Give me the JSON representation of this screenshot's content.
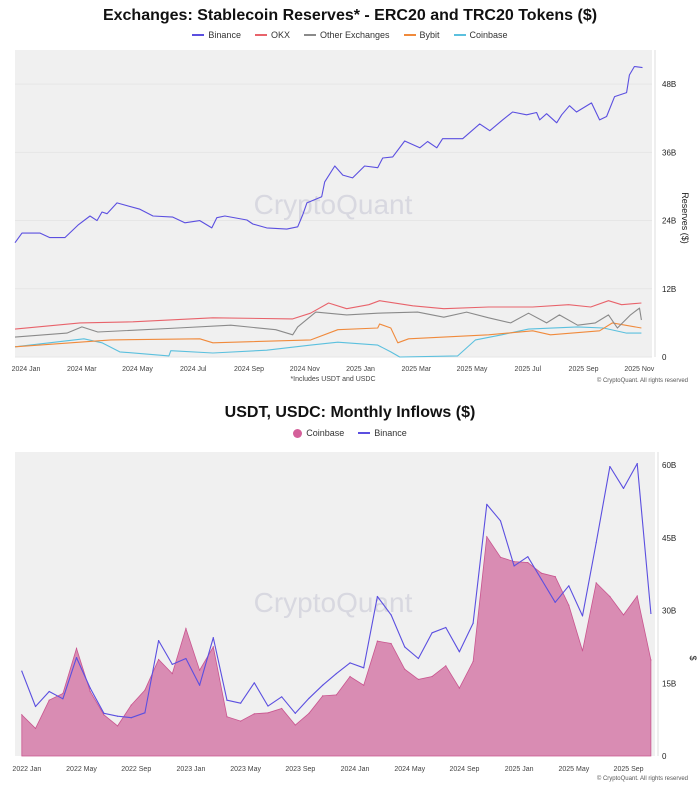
{
  "watermark": "CryptoQuant",
  "chart_data": [
    {
      "type": "line",
      "title": "Exchanges: Stablecoin Reserves* - ERC20 and TRC20 Tokens ($)",
      "ylabel": "Reserves ($)",
      "x_unit": "months since 2024 Jan",
      "ylim": [
        0,
        54
      ],
      "yticks": [
        0,
        12,
        24,
        36,
        48
      ],
      "ytick_labels": [
        "0",
        "12B",
        "24B",
        "36B",
        "48B"
      ],
      "xticks": [
        0,
        2,
        4,
        6,
        8,
        10,
        12,
        14,
        16,
        18,
        20,
        22
      ],
      "xtick_labels": [
        "2024 Jan",
        "2024 Mar",
        "2024 May",
        "2024 Jul",
        "2024 Sep",
        "2024 Nov",
        "2025 Jan",
        "2025 Mar",
        "2025 May",
        "2025 Jul",
        "2025 Sep",
        "2025 Nov"
      ],
      "xlim": [
        0,
        22.85
      ],
      "footnote": "*Includes USDT and USDC",
      "copyright": "© CryptoQuant. All rights reserved",
      "grid": true,
      "legend_position": "top-center",
      "series": [
        {
          "name": "Binance",
          "color": "#5b4fe0",
          "points": [
            [
              0,
              20.1
            ],
            [
              0.25,
              21.8
            ],
            [
              0.9,
              21.8
            ],
            [
              1.25,
              21
            ],
            [
              1.79,
              21
            ],
            [
              2.26,
              23.2
            ],
            [
              2.69,
              24.8
            ],
            [
              2.94,
              24
            ],
            [
              3.12,
              25.5
            ],
            [
              3.3,
              25.2
            ],
            [
              3.66,
              27.1
            ],
            [
              4.48,
              26
            ],
            [
              4.95,
              24.8
            ],
            [
              5.66,
              24.6
            ],
            [
              6.09,
              23.6
            ],
            [
              6.63,
              24
            ],
            [
              7.06,
              22.7
            ],
            [
              7.24,
              24.5
            ],
            [
              7.53,
              24.8
            ],
            [
              8.32,
              24.1
            ],
            [
              8.53,
              23.4
            ],
            [
              9.03,
              22.7
            ],
            [
              9.75,
              22.5
            ],
            [
              10.14,
              22.9
            ],
            [
              10.32,
              25
            ],
            [
              10.47,
              27.1
            ],
            [
              11.0,
              28.2
            ],
            [
              11.11,
              30.8
            ],
            [
              11.47,
              33.6
            ],
            [
              11.76,
              32
            ],
            [
              12.11,
              31.5
            ],
            [
              12.54,
              33.6
            ],
            [
              13.01,
              33.3
            ],
            [
              13.19,
              35
            ],
            [
              13.55,
              35.2
            ],
            [
              13.98,
              38
            ],
            [
              14.52,
              36.8
            ],
            [
              14.8,
              37.9
            ],
            [
              15.13,
              36.8
            ],
            [
              15.34,
              38.4
            ],
            [
              16.06,
              38.4
            ],
            [
              16.67,
              41
            ],
            [
              17.03,
              39.8
            ],
            [
              17.49,
              41.7
            ],
            [
              17.85,
              43.1
            ],
            [
              18.35,
              42.6
            ],
            [
              18.71,
              43
            ],
            [
              18.82,
              41.7
            ],
            [
              19.07,
              42.8
            ],
            [
              19.43,
              41.2
            ],
            [
              19.61,
              42.6
            ],
            [
              19.89,
              44.2
            ],
            [
              20.14,
              43.1
            ],
            [
              20.68,
              44.7
            ],
            [
              20.97,
              41.7
            ],
            [
              21.22,
              42.3
            ],
            [
              21.51,
              45.8
            ],
            [
              21.94,
              46.5
            ],
            [
              22.04,
              49.6
            ],
            [
              22.22,
              51.1
            ],
            [
              22.51,
              50.9
            ]
          ]
        },
        {
          "name": "OKX",
          "color": "#e8636b",
          "points": [
            [
              0,
              4.9
            ],
            [
              2.33,
              6
            ],
            [
              4.23,
              6.2
            ],
            [
              7.1,
              6.9
            ],
            [
              9.96,
              6.7
            ],
            [
              10.6,
              7.7
            ],
            [
              11.25,
              9.5
            ],
            [
              11.9,
              8.5
            ],
            [
              12.69,
              9.2
            ],
            [
              13.08,
              9.9
            ],
            [
              14.27,
              9
            ],
            [
              15.38,
              8.5
            ],
            [
              16.99,
              8.8
            ],
            [
              18.57,
              8.8
            ],
            [
              19.86,
              9.2
            ],
            [
              20.65,
              8.8
            ],
            [
              21.29,
              9.9
            ],
            [
              21.76,
              9.2
            ],
            [
              22.47,
              9.5
            ]
          ]
        },
        {
          "name": "Other Exchanges",
          "color": "#8a8a8a",
          "points": [
            [
              0,
              3.5
            ],
            [
              1.86,
              4.2
            ],
            [
              2.4,
              5.3
            ],
            [
              2.97,
              4.4
            ],
            [
              5.84,
              5.1
            ],
            [
              7.74,
              5.6
            ],
            [
              9.35,
              4.8
            ],
            [
              9.96,
              3.9
            ],
            [
              10.14,
              5.3
            ],
            [
              10.79,
              7.9
            ],
            [
              11.9,
              7.4
            ],
            [
              13.01,
              7.7
            ],
            [
              14.44,
              7.9
            ],
            [
              15.38,
              7
            ],
            [
              16.2,
              7.9
            ],
            [
              16.99,
              6.9
            ],
            [
              17.78,
              6
            ],
            [
              18.42,
              7.7
            ],
            [
              19.07,
              6
            ],
            [
              19.53,
              7.4
            ],
            [
              20.18,
              5.6
            ],
            [
              20.82,
              6
            ],
            [
              21.29,
              7.4
            ],
            [
              21.61,
              5.1
            ],
            [
              22.08,
              7.4
            ],
            [
              22.4,
              8.6
            ],
            [
              22.47,
              6.5
            ]
          ]
        },
        {
          "name": "Bybit",
          "color": "#f08a3c",
          "points": [
            [
              0,
              1.8
            ],
            [
              3.44,
              3
            ],
            [
              6.63,
              3.2
            ],
            [
              7.1,
              2.5
            ],
            [
              10.61,
              3
            ],
            [
              11.58,
              4.8
            ],
            [
              13.01,
              5.1
            ],
            [
              13.08,
              5.8
            ],
            [
              13.48,
              5.1
            ],
            [
              13.73,
              2.5
            ],
            [
              14.12,
              3.2
            ],
            [
              16.99,
              3.9
            ],
            [
              18.57,
              4.6
            ],
            [
              19.21,
              3.9
            ],
            [
              20.97,
              4.6
            ],
            [
              21.43,
              6
            ],
            [
              22.47,
              5.1
            ]
          ]
        },
        {
          "name": "Coinbase",
          "color": "#5bc0de",
          "points": [
            [
              0,
              1.8
            ],
            [
              2.47,
              3.2
            ],
            [
              3.12,
              2.5
            ],
            [
              3.76,
              0.9
            ],
            [
              5.52,
              0.2
            ],
            [
              5.59,
              1.1
            ],
            [
              7.1,
              0.7
            ],
            [
              9.03,
              1.2
            ],
            [
              10.61,
              2.1
            ],
            [
              11.58,
              2.6
            ],
            [
              13.01,
              2.1
            ],
            [
              13.48,
              0.9
            ],
            [
              13.8,
              0
            ],
            [
              15.88,
              0.2
            ],
            [
              16.52,
              3
            ],
            [
              17.46,
              3.9
            ],
            [
              18.42,
              4.9
            ],
            [
              20.18,
              5.3
            ],
            [
              21.11,
              5.1
            ],
            [
              21.94,
              4.2
            ],
            [
              22.47,
              4.2
            ]
          ]
        }
      ]
    },
    {
      "type": "area",
      "title": "USDT, USDC: Monthly Inflows ($)",
      "ylabel": "$",
      "x_unit": "months since 2022 Jan",
      "ylim": [
        0,
        62.7
      ],
      "yticks": [
        0,
        15,
        30,
        45,
        60
      ],
      "ytick_labels": [
        "0",
        "15B",
        "30B",
        "45B",
        "60B"
      ],
      "xticks": [
        0,
        4,
        8,
        12,
        16,
        20,
        24,
        28,
        32,
        36,
        40,
        44
      ],
      "xtick_labels": [
        "2022 Jan",
        "2022 May",
        "2022 Sep",
        "2023 Jan",
        "2023 May",
        "2023 Sep",
        "2024 Jan",
        "2024 May",
        "2024 Sep",
        "2025 Jan",
        "2025 May",
        "2025 Sep"
      ],
      "xlim": [
        -0.5,
        46.3
      ],
      "copyright": "© CryptoQuant. All rights reserved",
      "grid": false,
      "legend_position": "top-center",
      "series": [
        {
          "name": "Coinbase",
          "kind": "area",
          "color": "#d98cb3",
          "values": [
            8.5,
            5.7,
            11.5,
            12.9,
            22.2,
            13.3,
            8.5,
            6.2,
            10.5,
            13.6,
            19.9,
            17,
            26.3,
            17.7,
            22.5,
            8.1,
            7.2,
            8.7,
            8.9,
            9.8,
            6.4,
            8.8,
            12.4,
            12.6,
            16.4,
            14.6,
            23.7,
            23.2,
            17.9,
            15.8,
            16.4,
            18.6,
            14,
            19.5,
            45.2,
            41,
            40.1,
            39.9,
            37.7,
            37,
            31.1,
            21.7,
            35.7,
            32.9,
            29.1,
            33,
            19.8
          ]
        },
        {
          "name": "Binance",
          "kind": "line",
          "color": "#5b4fe0",
          "values": [
            17.5,
            10.2,
            13.3,
            11.8,
            20.3,
            14,
            8.8,
            8.2,
            7.9,
            8.9,
            23.8,
            18.9,
            20.1,
            14.6,
            24.4,
            11.5,
            10.9,
            15.1,
            10.3,
            12.2,
            8.8,
            11.9,
            14.6,
            17,
            19.2,
            18.2,
            32.9,
            29.1,
            22.5,
            20.1,
            25.4,
            26.5,
            21.5,
            27.4,
            51.9,
            48.5,
            39.2,
            41.1,
            36.4,
            31.7,
            35.1,
            28.9,
            44,
            59.7,
            55.2,
            60.3,
            29.4
          ]
        }
      ]
    }
  ]
}
